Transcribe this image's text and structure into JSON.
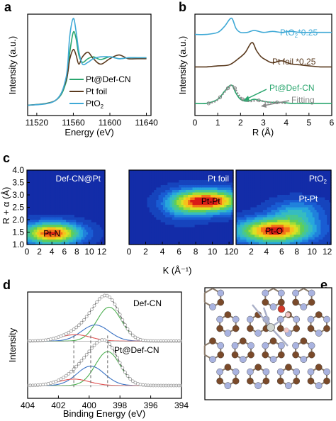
{
  "chart_data": [
    {
      "panel": "a",
      "type": "line",
      "xlabel": "Energy (eV)",
      "ylabel": "Intensity (a.u.)",
      "xlim": [
        11510,
        11645
      ],
      "xticks": [
        "11520",
        "11560",
        "11600",
        "11640"
      ],
      "legend_position": "bottom-right",
      "series": [
        {
          "name": "Pt@Def-CN",
          "color": "#2aa66e",
          "x": [
            11510,
            11540,
            11552,
            11556,
            11560,
            11563,
            11566,
            11570,
            11576,
            11582,
            11590,
            11600,
            11610,
            11620,
            11630,
            11640
          ],
          "y": [
            0.05,
            0.1,
            0.3,
            0.62,
            0.85,
            0.78,
            0.6,
            0.52,
            0.56,
            0.58,
            0.55,
            0.58,
            0.56,
            0.57,
            0.57,
            0.57
          ]
        },
        {
          "name": "Pt foil",
          "color": "#5a3a1e",
          "x": [
            11510,
            11540,
            11552,
            11556,
            11560,
            11563,
            11566,
            11570,
            11576,
            11582,
            11590,
            11600,
            11610,
            11620,
            11630,
            11640
          ],
          "y": [
            0.05,
            0.1,
            0.32,
            0.55,
            0.66,
            0.6,
            0.5,
            0.58,
            0.63,
            0.56,
            0.5,
            0.56,
            0.6,
            0.56,
            0.56,
            0.56
          ]
        },
        {
          "name": "PtO2",
          "color": "#3fa9d6",
          "x": [
            11510,
            11540,
            11552,
            11556,
            11560,
            11563,
            11566,
            11570,
            11576,
            11582,
            11590,
            11600,
            11610,
            11620,
            11630,
            11640
          ],
          "y": [
            0.05,
            0.1,
            0.35,
            0.8,
            1.0,
            0.86,
            0.64,
            0.5,
            0.52,
            0.56,
            0.58,
            0.58,
            0.56,
            0.57,
            0.57,
            0.57
          ]
        }
      ],
      "legend": [
        "Pt@Def-CN",
        "Pt foil",
        "PtO"
      ]
    },
    {
      "panel": "b",
      "type": "line",
      "xlabel": "R (Å)",
      "ylabel": "Intensity (a.u.)",
      "xlim": [
        0,
        6
      ],
      "xticks": [
        "0",
        "1",
        "2",
        "3",
        "4",
        "5",
        "6"
      ],
      "series": [
        {
          "name": "PtO₂*0.25",
          "color": "#3fa9d6",
          "x": [
            0,
            0.5,
            1.0,
            1.3,
            1.6,
            1.8,
            2.0,
            2.3,
            2.6,
            3.0,
            3.4,
            3.8,
            4.2,
            4.6,
            5.0,
            5.5,
            6.0
          ],
          "y": [
            0.8,
            0.8,
            0.82,
            0.88,
            0.96,
            0.86,
            0.82,
            0.82,
            0.84,
            0.82,
            0.83,
            0.82,
            0.83,
            0.82,
            0.82,
            0.82,
            0.82
          ]
        },
        {
          "name": "Pt foil *0.25",
          "color": "#5a3a1e",
          "x": [
            0,
            0.5,
            1.0,
            1.5,
            1.9,
            2.2,
            2.5,
            2.7,
            2.9,
            3.1,
            3.4,
            3.8,
            4.2,
            4.6,
            5.0,
            5.5,
            6.0
          ],
          "y": [
            0.48,
            0.48,
            0.49,
            0.5,
            0.56,
            0.62,
            0.72,
            0.64,
            0.58,
            0.55,
            0.52,
            0.54,
            0.51,
            0.5,
            0.49,
            0.48,
            0.48
          ]
        },
        {
          "name": "Pt@Def-CN",
          "color": "#2aa66e",
          "x": [
            0,
            0.5,
            1.0,
            1.3,
            1.6,
            1.8,
            2.0,
            2.3,
            2.6,
            3.0,
            3.4,
            3.8,
            4.2,
            4.6,
            5.0,
            5.5,
            6.0
          ],
          "y": [
            0.12,
            0.12,
            0.16,
            0.24,
            0.3,
            0.22,
            0.16,
            0.14,
            0.16,
            0.14,
            0.13,
            0.13,
            0.12,
            0.12,
            0.12,
            0.12,
            0.12
          ]
        }
      ],
      "fitting": {
        "name": "Fitting",
        "color": "#888888",
        "x": [
          0.6,
          0.9,
          1.1,
          1.3,
          1.45,
          1.6,
          1.75,
          1.9,
          2.1,
          2.4,
          2.8,
          3.2,
          3.6,
          4.0
        ],
        "y": [
          0.12,
          0.14,
          0.18,
          0.23,
          0.27,
          0.3,
          0.27,
          0.21,
          0.16,
          0.14,
          0.15,
          0.13,
          0.13,
          0.12
        ]
      },
      "labels": [
        "PtO",
        "*0.25",
        "Pt foil *0.25",
        "Pt@Def-CN",
        "Fitting"
      ]
    },
    {
      "panel": "c",
      "type": "heatmap",
      "xlabel": "K (Å⁻¹)",
      "ylabel": "R + α (Å)",
      "ylim": [
        1.0,
        4.0
      ],
      "xlim": [
        0,
        12.5
      ],
      "yticks": [
        "4.0",
        "3.5",
        "3.0",
        "2.5",
        "2.0",
        "1.5",
        "1.0"
      ],
      "xticks": [
        "0",
        "2",
        "4",
        "6",
        "8",
        "10",
        "12"
      ],
      "panels": [
        {
          "title": "Def-CN@Pt",
          "peak_label": "Pt-N",
          "peaks": [
            {
              "k": 4.0,
              "r": 1.45,
              "amp": 1.0,
              "sk": 3.2,
              "sr": 0.3
            }
          ]
        },
        {
          "title": "Pt foil",
          "peak_label": "Pt-Pt",
          "peaks": [
            {
              "k": 9.8,
              "r": 2.75,
              "amp": 1.0,
              "sk": 2.6,
              "sr": 0.32
            },
            {
              "k": 6.5,
              "r": 2.6,
              "amp": 0.35,
              "sk": 1.8,
              "sr": 0.4
            }
          ]
        },
        {
          "title": "PtO",
          "title_sub": "2",
          "peak_label": "Pt-O",
          "second_label": "Pt-Pt",
          "peaks": [
            {
              "k": 5.0,
              "r": 1.55,
              "amp": 1.0,
              "sk": 3.4,
              "sr": 0.34
            },
            {
              "k": 8.0,
              "r": 2.3,
              "amp": 0.35,
              "sk": 2.4,
              "sr": 0.35
            }
          ]
        }
      ]
    },
    {
      "panel": "d",
      "type": "line",
      "xlabel": "Binding Energy (eV)",
      "ylabel": "Intensity",
      "xlim": [
        404,
        394
      ],
      "xticks": [
        "404",
        "402",
        "400",
        "398",
        "396",
        "394"
      ],
      "spectra": [
        {
          "label": "Def-CN",
          "offset": 0.55,
          "components": [
            {
              "c": 398.7,
              "a": 0.42,
              "w": 0.8,
              "color": "#4caf50"
            },
            {
              "c": 399.6,
              "a": 0.2,
              "w": 0.9,
              "color": "#3b73c4"
            },
            {
              "c": 400.9,
              "a": 0.08,
              "w": 1.0,
              "color": "#e05555"
            }
          ]
        },
        {
          "label": "Pt@Def-CN",
          "offset": 0.0,
          "components": [
            {
              "c": 398.8,
              "a": 0.42,
              "w": 0.8,
              "color": "#4caf50"
            },
            {
              "c": 399.9,
              "a": 0.24,
              "w": 0.9,
              "color": "#3b73c4"
            },
            {
              "c": 401.0,
              "a": 0.08,
              "w": 1.0,
              "color": "#e05555"
            }
          ]
        }
      ],
      "dashed_lines": [
        401.0,
        399.9,
        398.8
      ]
    }
  ],
  "panel_labels": {
    "a": "a",
    "b": "b",
    "c": "c",
    "d": "d",
    "e": "e"
  },
  "colors": {
    "carbon": "#7a4a2a",
    "nitrogen": "#a9b3e0",
    "platinum": "#d0d6d0",
    "oxygen": "#d43a2a",
    "hydrogen": "#f2c6c6"
  }
}
